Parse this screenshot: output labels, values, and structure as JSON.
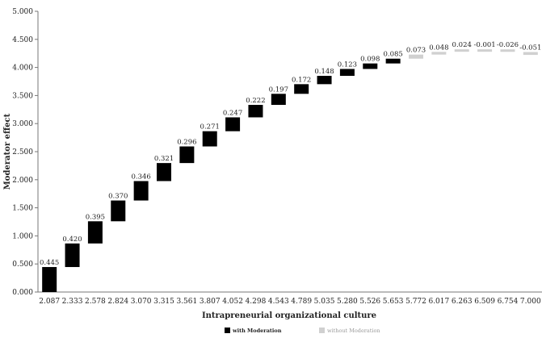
{
  "chart_data": {
    "type": "bar",
    "subtype": "waterfall",
    "title": "",
    "xlabel": "Intrapreneurial organizational culture",
    "ylabel": "Moderator effect",
    "ylim": [
      0,
      5
    ],
    "y_ticks": [
      "0.000",
      "0.500",
      "1.000",
      "1.500",
      "2.000",
      "2.500",
      "3.000",
      "3.500",
      "4.000",
      "4.500",
      "5.000"
    ],
    "categories": [
      "2.087",
      "2.333",
      "2.578",
      "2.824",
      "3.070",
      "3.315",
      "3.561",
      "3.807",
      "4.052",
      "4.298",
      "4.543",
      "4.789",
      "5.035",
      "5.280",
      "5.526",
      "5.653",
      "5.772",
      "6.017",
      "6.263",
      "6.509",
      "6.754",
      "7.000"
    ],
    "data_labels": [
      "0.445",
      "0.420",
      "0.395",
      "0.370",
      "0.346",
      "0.321",
      "0.296",
      "0.271",
      "0.247",
      "0.222",
      "0.197",
      "0.172",
      "0.148",
      "0.123",
      "0.098",
      "0.085",
      "0.073",
      "0.048",
      "0.024",
      "-0.001",
      "-0.026",
      "-0.051"
    ],
    "increments": [
      0.445,
      0.42,
      0.395,
      0.37,
      0.346,
      0.321,
      0.296,
      0.271,
      0.247,
      0.222,
      0.197,
      0.172,
      0.148,
      0.123,
      0.098,
      0.085,
      0.073,
      0.048,
      0.024,
      -0.001,
      -0.026,
      -0.051
    ],
    "series": [
      {
        "name": "with Moderation",
        "color": "#000000",
        "points": [
          0,
          1,
          2,
          3,
          4,
          5,
          6,
          7,
          8,
          9,
          10,
          11,
          12,
          13,
          14,
          15
        ]
      },
      {
        "name": "without Moderation",
        "color": "#d0d0d0",
        "points": [
          16,
          17,
          18,
          19,
          20,
          21
        ]
      }
    ],
    "grid": false,
    "legend_position": "bottom"
  }
}
